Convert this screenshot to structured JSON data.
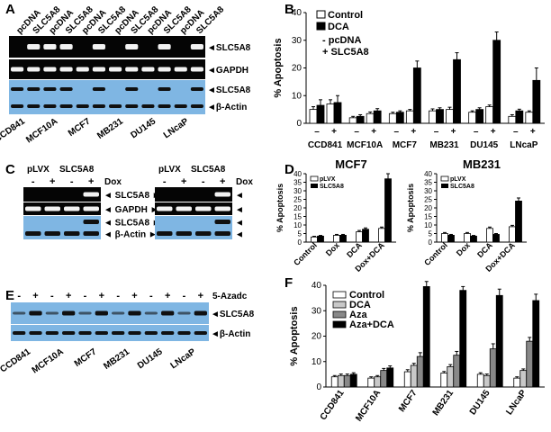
{
  "colors": {
    "blot_dark": "#050505",
    "blot_blue": "#7fb6e3",
    "band_dark": "#101010",
    "band_light": "#f2f2f2",
    "bar_aza": "#888888",
    "bar_dca_light": "#c8c8c8"
  },
  "panels": {
    "A": {
      "label": "A",
      "lane_labels": [
        "pcDNA",
        "SLC5A8",
        "pcDNA",
        "SLC5A8",
        "pcDNA",
        "SLC5A8",
        "pcDNA",
        "SLC5A8",
        "pcDNA",
        "SLC5A8",
        "pcDNA",
        "SLC5A8"
      ],
      "blot_labels": [
        "SLC5A8",
        "GAPDH",
        "SLC5A8",
        "β-Actin"
      ],
      "cell_lines": [
        "CCD841",
        "MCF10A",
        "MCF7",
        "MB231",
        "DU145",
        "LNcaP"
      ]
    },
    "C": {
      "label": "C",
      "groups": [
        "pLVX",
        "SLC5A8",
        "pLVX",
        "SLC5A8"
      ],
      "signs": [
        "-",
        "+",
        "-",
        "+",
        "-",
        "+",
        "-",
        "+"
      ],
      "dox": "Dox",
      "blot_labels": [
        "SLC5A8",
        "GAPDH",
        "SLC5A8",
        "β-Actin"
      ]
    },
    "E": {
      "label": "E",
      "signs": [
        "-",
        "+",
        "-",
        "+",
        "-",
        "+",
        "-",
        "+",
        "-",
        "+",
        "-",
        "+"
      ],
      "treatment": "5-Azadc",
      "blot_labels": [
        "SLC5A8",
        "β-Actin"
      ],
      "cell_lines": [
        "CCD841",
        "MCF10A",
        "MCF7",
        "MB231",
        "DU145",
        "LNcaP"
      ]
    }
  },
  "chart_data": [
    {
      "panel": "B",
      "type": "bar",
      "ylabel": "% Apoptosis",
      "ylim": [
        0,
        40
      ],
      "yticks": [
        0,
        10,
        20,
        30,
        40
      ],
      "legend": [
        "Control",
        "DCA"
      ],
      "legend_note": [
        "- pcDNA",
        "+ SLC5A8"
      ],
      "categories": [
        "CCD841",
        "MCF10A",
        "MCF7",
        "MB231",
        "DU145",
        "LNcaP"
      ],
      "sub_categories": [
        "–",
        "+"
      ],
      "series": [
        {
          "name": "Control",
          "values": [
            5,
            2,
            3.5,
            4.5,
            4,
            2.5
          ],
          "errors": [
            1,
            0.5,
            0.5,
            0.7,
            0.5,
            0.6
          ]
        },
        {
          "name": "DCA",
          "values": [
            6.5,
            2.5,
            4,
            5,
            5,
            4.5
          ],
          "errors": [
            2,
            0.6,
            0.5,
            0.6,
            0.6,
            0.6
          ]
        },
        {
          "name": "Control",
          "values": [
            7,
            3.5,
            4.5,
            5,
            6,
            4
          ],
          "errors": [
            1.5,
            0.6,
            0.5,
            0.8,
            0.6,
            0.5
          ]
        },
        {
          "name": "DCA",
          "values": [
            7.5,
            4.5,
            20,
            23,
            30,
            15.5
          ],
          "errors": [
            2.5,
            0.8,
            2.5,
            2.5,
            3,
            4.5
          ]
        }
      ]
    },
    {
      "panel": "D",
      "title": "MCF7",
      "type": "bar",
      "ylabel": "% Apoptosis",
      "ylim": [
        0,
        40
      ],
      "yticks": [
        0,
        5,
        10,
        15,
        20,
        25,
        30,
        35,
        40
      ],
      "legend": [
        "pLVX",
        "SLC5A8"
      ],
      "categories": [
        "Control",
        "Dox",
        "DCA",
        "Dox+DCA"
      ],
      "series": [
        {
          "name": "pLVX",
          "values": [
            3,
            4,
            6,
            8
          ],
          "errors": [
            0.4,
            0.5,
            0.8,
            0.8
          ]
        },
        {
          "name": "SLC5A8",
          "values": [
            3.5,
            4,
            7.5,
            37
          ],
          "errors": [
            0.4,
            0.5,
            0.8,
            3
          ]
        }
      ]
    },
    {
      "panel": "D",
      "title": "MB231",
      "type": "bar",
      "ylabel": "% Apoptosis",
      "ylim": [
        0,
        40
      ],
      "yticks": [
        0,
        5,
        10,
        15,
        20,
        25,
        30,
        35,
        40
      ],
      "legend": [
        "pLVX",
        "SLC5A8"
      ],
      "categories": [
        "Control",
        "Dox",
        "DCA",
        "Dox+DCA"
      ],
      "series": [
        {
          "name": "pLVX",
          "values": [
            5,
            5,
            8,
            9
          ],
          "errors": [
            0.6,
            0.6,
            0.8,
            0.8
          ]
        },
        {
          "name": "SLC5A8",
          "values": [
            4,
            3.5,
            4.5,
            24
          ],
          "errors": [
            0.5,
            0.4,
            0.5,
            1.8
          ]
        }
      ]
    },
    {
      "panel": "F",
      "type": "bar",
      "ylabel": "% Apoptosis",
      "ylim": [
        0,
        40
      ],
      "yticks": [
        0,
        10,
        20,
        30,
        40
      ],
      "legend": [
        "Control",
        "DCA",
        "Aza",
        "Aza+DCA"
      ],
      "categories": [
        "CCD841",
        "MCF10A",
        "MCF7",
        "MB231",
        "DU145",
        "LNcaP"
      ],
      "series": [
        {
          "name": "Control",
          "values": [
            4,
            3.5,
            6,
            5.5,
            5,
            3.5
          ],
          "errors": [
            0.5,
            0.5,
            0.8,
            0.6,
            0.6,
            0.5
          ]
        },
        {
          "name": "DCA",
          "values": [
            4.5,
            4,
            8.5,
            8,
            4.5,
            6.5
          ],
          "errors": [
            0.6,
            0.5,
            0.8,
            0.8,
            0.6,
            0.6
          ]
        },
        {
          "name": "Aza",
          "values": [
            4.5,
            6.5,
            12,
            12.5,
            15,
            18
          ],
          "errors": [
            0.6,
            0.8,
            1.5,
            1.5,
            2,
            1.5
          ]
        },
        {
          "name": "Aza+DCA",
          "values": [
            5,
            7.5,
            39.5,
            38,
            36,
            34
          ],
          "errors": [
            0.6,
            0.8,
            2,
            1.5,
            2.5,
            2.5
          ]
        }
      ]
    }
  ]
}
